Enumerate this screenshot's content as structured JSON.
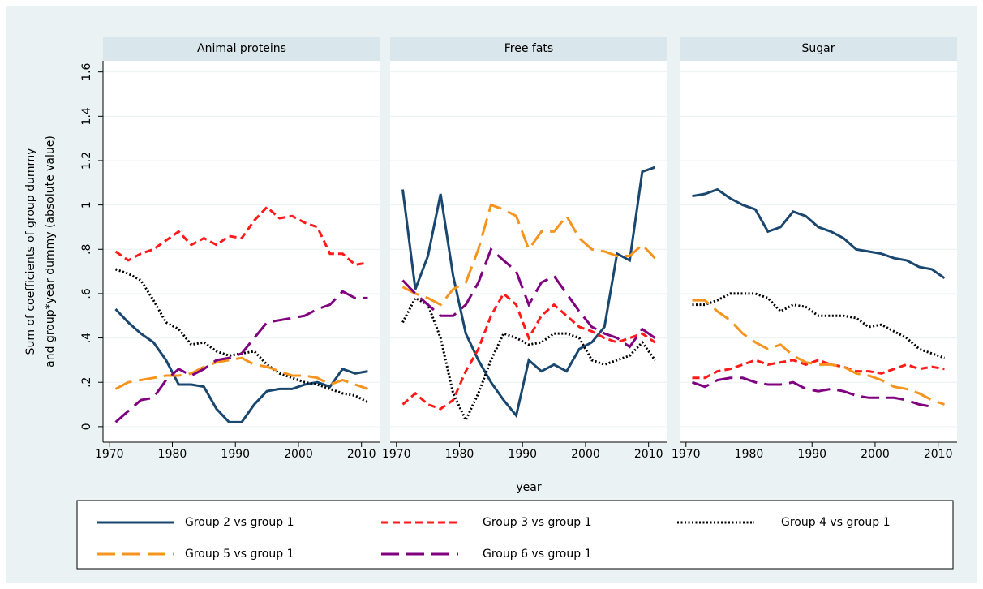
{
  "chart_data": [
    {
      "type": "line",
      "title": "Animal proteins",
      "ylabel": [
        "Sum of coefficients of group dummy",
        "and group*year dummy (absolute value)"
      ],
      "x": [
        1971,
        1973,
        1975,
        1977,
        1979,
        1981,
        1983,
        1985,
        1987,
        1989,
        1991,
        1993,
        1995,
        1997,
        1999,
        2001,
        2003,
        2005,
        2007,
        2009,
        2011
      ],
      "xlim": [
        1969,
        2013
      ],
      "ylim": [
        -0.07,
        1.65
      ],
      "xticks": [
        1970,
        1980,
        1990,
        2000,
        2010
      ],
      "yticks": [
        0,
        {
          "value": 0.2,
          "label": ".2"
        },
        {
          "value": 0.4,
          "label": ".4"
        },
        {
          "value": 0.6,
          "label": ".6"
        },
        {
          "value": 0.8,
          "label": ".8"
        },
        1,
        1.2,
        1.4,
        1.6
      ],
      "grid": true,
      "series": [
        {
          "name": "Group 2 vs group 1",
          "color": "#1a476f",
          "dash": "solid",
          "values": [
            0.53,
            0.47,
            0.42,
            0.38,
            0.3,
            0.19,
            0.19,
            0.18,
            0.08,
            0.02,
            0.02,
            0.1,
            0.16,
            0.17,
            0.17,
            0.19,
            0.2,
            0.18,
            0.26,
            0.24,
            0.25
          ]
        },
        {
          "name": "Group 3 vs group 1",
          "color": "#ff1a1a",
          "dash": "dash",
          "values": [
            0.79,
            0.75,
            0.78,
            0.8,
            0.84,
            0.88,
            0.82,
            0.85,
            0.82,
            0.86,
            0.85,
            0.93,
            0.99,
            0.94,
            0.95,
            0.92,
            0.9,
            0.78,
            0.78,
            0.73,
            0.74
          ]
        },
        {
          "name": "Group 4 vs group 1",
          "color": "#000000",
          "dash": "dot",
          "values": [
            0.71,
            0.69,
            0.66,
            0.57,
            0.47,
            0.44,
            0.37,
            0.38,
            0.34,
            0.32,
            0.33,
            0.34,
            0.28,
            0.24,
            0.22,
            0.2,
            0.19,
            0.17,
            0.15,
            0.14,
            0.11
          ]
        },
        {
          "name": "Group 5 vs group 1",
          "color": "#f7941d",
          "dash": "longdash",
          "values": [
            0.17,
            0.2,
            0.21,
            0.22,
            0.23,
            0.23,
            0.24,
            0.27,
            0.29,
            0.3,
            0.31,
            0.28,
            0.27,
            0.25,
            0.23,
            0.23,
            0.22,
            0.19,
            0.21,
            0.19,
            0.17
          ]
        },
        {
          "name": "Group 6 vs group 1",
          "color": "#800080",
          "dash": "longdash",
          "values": [
            0.02,
            0.07,
            0.12,
            0.13,
            0.21,
            0.26,
            0.23,
            0.26,
            0.3,
            0.31,
            0.33,
            0.4,
            0.47,
            0.48,
            0.49,
            0.5,
            0.53,
            0.55,
            0.61,
            0.58,
            0.58
          ]
        }
      ]
    },
    {
      "type": "line",
      "title": "Free fats",
      "xlabel": "year",
      "x": [
        1971,
        1973,
        1975,
        1977,
        1979,
        1981,
        1983,
        1985,
        1987,
        1989,
        1991,
        1993,
        1995,
        1997,
        1999,
        2001,
        2003,
        2005,
        2007,
        2009,
        2011
      ],
      "xlim": [
        1969,
        2013
      ],
      "ylim": [
        -0.07,
        1.65
      ],
      "xticks": [
        1970,
        1980,
        1990,
        2000,
        2010
      ],
      "yticks": [
        0,
        0.2,
        0.4,
        0.6,
        0.8,
        1,
        1.2,
        1.4,
        1.6
      ],
      "grid": true,
      "series": [
        {
          "color": "#1a476f",
          "dash": "solid",
          "values": [
            1.07,
            0.62,
            0.77,
            1.05,
            0.68,
            0.42,
            0.3,
            0.2,
            0.12,
            0.05,
            0.3,
            0.25,
            0.28,
            0.25,
            0.35,
            0.38,
            0.45,
            0.78,
            0.75,
            1.15,
            1.17
          ]
        },
        {
          "color": "#ff1a1a",
          "dash": "dash",
          "values": [
            0.1,
            0.15,
            0.1,
            0.08,
            0.12,
            0.25,
            0.35,
            0.5,
            0.6,
            0.55,
            0.4,
            0.5,
            0.55,
            0.5,
            0.45,
            0.43,
            0.4,
            0.38,
            0.4,
            0.42,
            0.38
          ]
        },
        {
          "color": "#000000",
          "dash": "dot",
          "values": [
            0.47,
            0.58,
            0.55,
            0.4,
            0.15,
            0.03,
            0.15,
            0.3,
            0.42,
            0.4,
            0.37,
            0.38,
            0.42,
            0.42,
            0.4,
            0.3,
            0.28,
            0.3,
            0.32,
            0.38,
            0.3
          ]
        },
        {
          "color": "#f7941d",
          "dash": "longdash",
          "values": [
            0.63,
            0.6,
            0.58,
            0.55,
            0.62,
            0.65,
            0.8,
            1.0,
            0.98,
            0.95,
            0.8,
            0.88,
            0.88,
            0.95,
            0.85,
            0.8,
            0.79,
            0.77,
            0.77,
            0.82,
            0.76
          ]
        },
        {
          "color": "#800080",
          "dash": "longdash",
          "values": [
            0.66,
            0.6,
            0.55,
            0.5,
            0.5,
            0.55,
            0.65,
            0.8,
            0.75,
            0.7,
            0.55,
            0.65,
            0.68,
            0.6,
            0.52,
            0.45,
            0.42,
            0.4,
            0.36,
            0.44,
            0.4
          ]
        }
      ]
    },
    {
      "type": "line",
      "title": "Sugar",
      "x": [
        1971,
        1973,
        1975,
        1977,
        1979,
        1981,
        1983,
        1985,
        1987,
        1989,
        1991,
        1993,
        1995,
        1997,
        1999,
        2001,
        2003,
        2005,
        2007,
        2009,
        2011
      ],
      "xlim": [
        1969,
        2013
      ],
      "ylim": [
        -0.07,
        1.65
      ],
      "xticks": [
        1970,
        1980,
        1990,
        2000,
        2010
      ],
      "yticks": [
        0,
        0.2,
        0.4,
        0.6,
        0.8,
        1,
        1.2,
        1.4,
        1.6
      ],
      "grid": true,
      "series": [
        {
          "color": "#1a476f",
          "dash": "solid",
          "values": [
            1.04,
            1.05,
            1.07,
            1.03,
            1.0,
            0.98,
            0.88,
            0.9,
            0.97,
            0.95,
            0.9,
            0.88,
            0.85,
            0.8,
            0.79,
            0.78,
            0.76,
            0.75,
            0.72,
            0.71,
            0.67
          ]
        },
        {
          "color": "#ff1a1a",
          "dash": "dash",
          "values": [
            0.22,
            0.22,
            0.25,
            0.26,
            0.28,
            0.3,
            0.28,
            0.29,
            0.3,
            0.28,
            0.3,
            0.28,
            0.27,
            0.25,
            0.25,
            0.24,
            0.26,
            0.28,
            0.26,
            0.27,
            0.26
          ]
        },
        {
          "color": "#000000",
          "dash": "dot",
          "values": [
            0.55,
            0.55,
            0.57,
            0.6,
            0.6,
            0.6,
            0.58,
            0.52,
            0.55,
            0.54,
            0.5,
            0.5,
            0.5,
            0.49,
            0.45,
            0.46,
            0.43,
            0.4,
            0.35,
            0.33,
            0.31
          ]
        },
        {
          "color": "#f7941d",
          "dash": "longdash",
          "values": [
            0.57,
            0.57,
            0.52,
            0.48,
            0.42,
            0.38,
            0.35,
            0.37,
            0.32,
            0.29,
            0.28,
            0.28,
            0.27,
            0.24,
            0.23,
            0.21,
            0.18,
            0.17,
            0.15,
            0.12,
            0.1
          ]
        },
        {
          "color": "#800080",
          "dash": "longdash",
          "values": [
            0.2,
            0.18,
            0.21,
            0.22,
            0.22,
            0.2,
            0.19,
            0.19,
            0.2,
            0.17,
            0.16,
            0.17,
            0.16,
            0.14,
            0.13,
            0.13,
            0.13,
            0.12,
            0.1,
            0.09,
            null
          ]
        }
      ]
    }
  ]
}
